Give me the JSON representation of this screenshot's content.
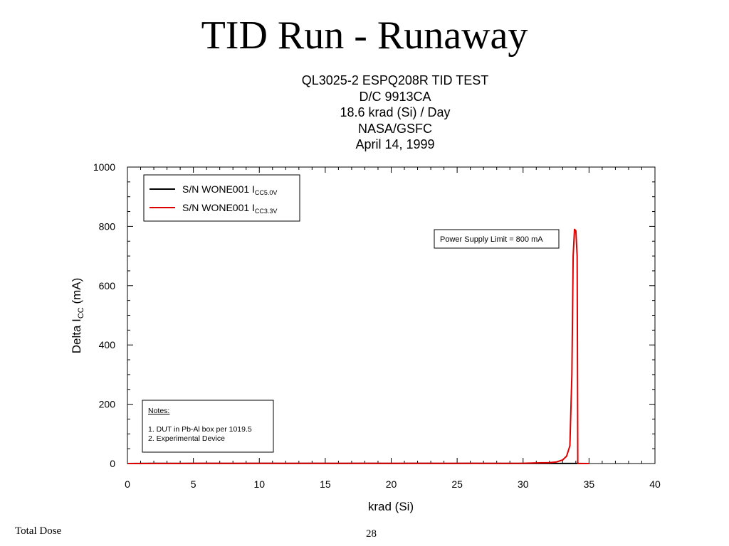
{
  "slide": {
    "title": "TID Run - Runaway",
    "footer_left": "Total Dose",
    "page_number": "28"
  },
  "chart_data": {
    "type": "line",
    "title_lines": [
      "QL3025-2 ESPQ208R TID TEST",
      "D/C 9913CA",
      "18.6 krad (Si) / Day",
      "NASA/GSFC",
      "April 14, 1999"
    ],
    "xlabel": "krad (Si)",
    "ylabel": {
      "main": "Delta I",
      "sub": "CC",
      "suffix": " (mA)"
    },
    "xlim": [
      0,
      40
    ],
    "ylim": [
      0,
      1000
    ],
    "x_ticks": [
      0,
      5,
      10,
      15,
      20,
      25,
      30,
      35,
      40
    ],
    "y_ticks": [
      0,
      200,
      400,
      600,
      800,
      1000
    ],
    "x_tick_labels": [
      "0",
      "5",
      "10",
      "15",
      "20",
      "25",
      "30",
      "35",
      "40"
    ],
    "y_tick_labels": [
      "0",
      "200",
      "400",
      "600",
      "800",
      "1000"
    ],
    "x_minor_step": 1,
    "y_minor_step": 50,
    "grid": false,
    "legend": {
      "position": "top-left",
      "entries": [
        {
          "main": "S/N WONE001 I",
          "sub": "CC5.0V",
          "color": "#000000"
        },
        {
          "main": "S/N WONE001 I",
          "sub": "CC3.3V",
          "color": "#dd0000"
        }
      ]
    },
    "series": [
      {
        "color": "#000000",
        "x": [
          0,
          2,
          4,
          6,
          8,
          10,
          12,
          14,
          16,
          18,
          20,
          22,
          24,
          26,
          28,
          30,
          32,
          33,
          34,
          35
        ],
        "y": [
          0,
          0.5,
          0.2,
          0.5,
          0.3,
          0.6,
          0.2,
          0.5,
          0.3,
          0.6,
          0.2,
          0.5,
          0.3,
          0.4,
          0.2,
          0.3,
          0.2,
          0.3,
          0.2,
          0
        ]
      },
      {
        "color": "#dd0000",
        "x": [
          0,
          5,
          10,
          15,
          20,
          25,
          30,
          32,
          32.5,
          33,
          33.3,
          33.55,
          33.7,
          33.8,
          33.9,
          34.0,
          34.1,
          34.15,
          34.25,
          35
        ],
        "y": [
          0,
          0.5,
          0.5,
          0.5,
          0.5,
          0.5,
          1,
          3,
          5,
          12,
          25,
          60,
          300,
          700,
          790,
          785,
          700,
          0,
          0,
          0
        ]
      }
    ],
    "annotations": [
      {
        "text": "Power Supply Limit = 800 mA"
      }
    ],
    "notes": {
      "heading": "Notes:",
      "lines": [
        "1. DUT in Pb-Al box per 1019.5",
        "2. Experimental Device"
      ]
    }
  }
}
